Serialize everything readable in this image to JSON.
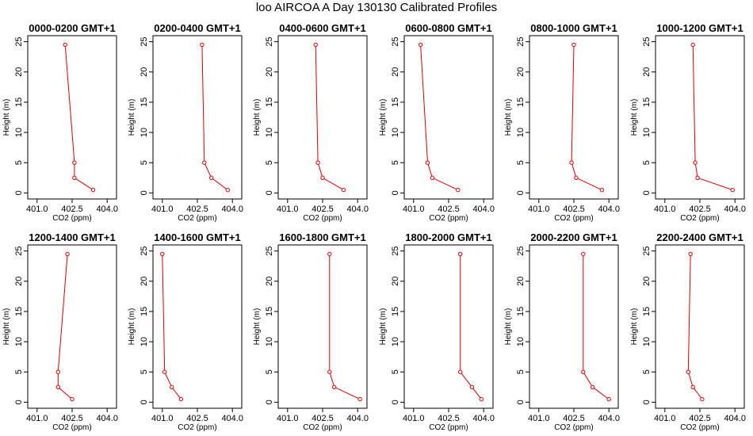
{
  "figure": {
    "title": "loo AIRCOA A  Day 130130  Calibrated Profiles"
  },
  "colors": {
    "profile_line": "#e00000",
    "marker": "#e00000",
    "frame": "#000000"
  },
  "chart_data": [
    {
      "type": "line",
      "title": "0000-0200 GMT+1",
      "xlabel": "CO2 (ppm)",
      "ylabel": "Height (m)",
      "xlim": [
        400.6,
        404.4
      ],
      "ylim": [
        -1,
        26
      ],
      "xticks": [
        "401.0",
        "402.5",
        "404.0"
      ],
      "yticks": [
        "0",
        "5",
        "10",
        "15",
        "20",
        "25"
      ],
      "x": [
        402.2,
        402.6,
        402.6,
        403.4
      ],
      "y": [
        24.5,
        5.0,
        2.5,
        0.5
      ]
    },
    {
      "type": "line",
      "title": "0200-0400 GMT+1",
      "xlabel": "CO2 (ppm)",
      "ylabel": "Height (m)",
      "xlim": [
        400.6,
        404.4
      ],
      "ylim": [
        -1,
        26
      ],
      "xticks": [
        "401.0",
        "402.5",
        "404.0"
      ],
      "yticks": [
        "0",
        "5",
        "10",
        "15",
        "20",
        "25"
      ],
      "x": [
        402.7,
        402.8,
        403.1,
        403.8
      ],
      "y": [
        24.5,
        5.0,
        2.5,
        0.5
      ]
    },
    {
      "type": "line",
      "title": "0400-0600 GMT+1",
      "xlabel": "CO2 (ppm)",
      "ylabel": "Height (m)",
      "xlim": [
        400.6,
        404.4
      ],
      "ylim": [
        -1,
        26
      ],
      "xticks": [
        "401.0",
        "402.5",
        "404.0"
      ],
      "yticks": [
        "0",
        "5",
        "10",
        "15",
        "20",
        "25"
      ],
      "x": [
        402.2,
        402.3,
        402.5,
        403.4
      ],
      "y": [
        24.5,
        5.0,
        2.5,
        0.5
      ]
    },
    {
      "type": "line",
      "title": "0600-0800 GMT+1",
      "xlabel": "CO2 (ppm)",
      "ylabel": "Height (m)",
      "xlim": [
        400.6,
        404.4
      ],
      "ylim": [
        -1,
        26
      ],
      "xticks": [
        "401.0",
        "402.5",
        "404.0"
      ],
      "yticks": [
        "0",
        "5",
        "10",
        "15",
        "20",
        "25"
      ],
      "x": [
        401.3,
        401.6,
        401.8,
        402.9
      ],
      "y": [
        24.5,
        5.0,
        2.5,
        0.5
      ]
    },
    {
      "type": "line",
      "title": "0800-1000 GMT+1",
      "xlabel": "CO2 (ppm)",
      "ylabel": "Height (m)",
      "xlim": [
        400.6,
        404.4
      ],
      "ylim": [
        -1,
        26
      ],
      "xticks": [
        "401.0",
        "402.5",
        "404.0"
      ],
      "yticks": [
        "0",
        "5",
        "10",
        "15",
        "20",
        "25"
      ],
      "x": [
        402.5,
        402.4,
        402.6,
        403.7
      ],
      "y": [
        24.5,
        5.0,
        2.5,
        0.5
      ]
    },
    {
      "type": "line",
      "title": "1000-1200 GMT+1",
      "xlabel": "CO2 (ppm)",
      "ylabel": "Height (m)",
      "xlim": [
        400.6,
        404.4
      ],
      "ylim": [
        -1,
        26
      ],
      "xticks": [
        "401.0",
        "402.5",
        "404.0"
      ],
      "yticks": [
        "0",
        "5",
        "10",
        "15",
        "20",
        "25"
      ],
      "x": [
        402.2,
        402.3,
        402.4,
        403.9
      ],
      "y": [
        24.5,
        5.0,
        2.5,
        0.5
      ]
    },
    {
      "type": "line",
      "title": "1200-1400 GMT+1",
      "xlabel": "CO2 (ppm)",
      "ylabel": "Height (m)",
      "xlim": [
        400.6,
        404.4
      ],
      "ylim": [
        -1,
        26
      ],
      "xticks": [
        "401.0",
        "402.5",
        "404.0"
      ],
      "yticks": [
        "0",
        "5",
        "10",
        "15",
        "20",
        "25"
      ],
      "x": [
        402.3,
        401.9,
        401.9,
        402.5
      ],
      "y": [
        24.5,
        5.0,
        2.5,
        0.5
      ]
    },
    {
      "type": "line",
      "title": "1400-1600 GMT+1",
      "xlabel": "CO2 (ppm)",
      "ylabel": "Height (m)",
      "xlim": [
        400.6,
        404.4
      ],
      "ylim": [
        -1,
        26
      ],
      "xticks": [
        "401.0",
        "402.5",
        "404.0"
      ],
      "yticks": [
        "0",
        "5",
        "10",
        "15",
        "20",
        "25"
      ],
      "x": [
        401.0,
        401.1,
        401.4,
        401.8
      ],
      "y": [
        24.5,
        5.0,
        2.5,
        0.5
      ]
    },
    {
      "type": "line",
      "title": "1600-1800 GMT+1",
      "xlabel": "CO2 (ppm)",
      "ylabel": "Height (m)",
      "xlim": [
        400.6,
        404.4
      ],
      "ylim": [
        -1,
        26
      ],
      "xticks": [
        "401.0",
        "402.5",
        "404.0"
      ],
      "yticks": [
        "0",
        "5",
        "10",
        "15",
        "20",
        "25"
      ],
      "x": [
        402.8,
        402.8,
        403.0,
        404.1
      ],
      "y": [
        24.5,
        5.0,
        2.5,
        0.5
      ]
    },
    {
      "type": "line",
      "title": "1800-2000 GMT+1",
      "xlabel": "CO2 (ppm)",
      "ylabel": "Height (m)",
      "xlim": [
        400.6,
        404.4
      ],
      "ylim": [
        -1,
        26
      ],
      "xticks": [
        "401.0",
        "402.5",
        "404.0"
      ],
      "yticks": [
        "0",
        "5",
        "10",
        "15",
        "20",
        "25"
      ],
      "x": [
        403.0,
        403.0,
        403.5,
        403.9
      ],
      "y": [
        24.5,
        5.0,
        2.5,
        0.5
      ]
    },
    {
      "type": "line",
      "title": "2000-2200 GMT+1",
      "xlabel": "CO2 (ppm)",
      "ylabel": "Height (m)",
      "xlim": [
        400.6,
        404.4
      ],
      "ylim": [
        -1,
        26
      ],
      "xticks": [
        "401.0",
        "402.5",
        "404.0"
      ],
      "yticks": [
        "0",
        "5",
        "10",
        "15",
        "20",
        "25"
      ],
      "x": [
        402.9,
        402.9,
        403.3,
        404.0
      ],
      "y": [
        24.5,
        5.0,
        2.5,
        0.5
      ]
    },
    {
      "type": "line",
      "title": "2200-2400 GMT+1",
      "xlabel": "CO2 (ppm)",
      "ylabel": "Height (m)",
      "xlim": [
        400.6,
        404.4
      ],
      "ylim": [
        -1,
        26
      ],
      "xticks": [
        "401.0",
        "402.5",
        "404.0"
      ],
      "yticks": [
        "0",
        "5",
        "10",
        "15",
        "20",
        "25"
      ],
      "x": [
        402.1,
        402.0,
        402.2,
        402.6
      ],
      "y": [
        24.5,
        5.0,
        2.5,
        0.5
      ]
    }
  ]
}
